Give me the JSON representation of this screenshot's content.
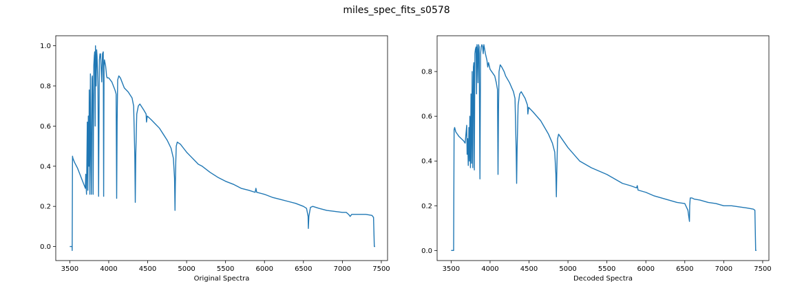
{
  "figure": {
    "title": "miles_spec_fits_s0578",
    "line_color": "#1f77b4"
  },
  "chart_data": [
    {
      "type": "line",
      "title": "",
      "xlabel": "Original Spectra",
      "ylabel": "",
      "xlim": [
        3320,
        7580
      ],
      "ylim": [
        -0.07,
        1.05
      ],
      "xticks": [
        3500,
        4000,
        4500,
        5000,
        5500,
        6000,
        6500,
        7000,
        7500
      ],
      "yticks": [
        0.0,
        0.2,
        0.4,
        0.6,
        0.8,
        1.0
      ],
      "ytick_labels": [
        "0.0",
        "0.2",
        "0.4",
        "0.6",
        "0.8",
        "1.0"
      ],
      "grid": false,
      "series": [
        {
          "x": [
            3500,
            3530,
            3531,
            3535,
            3540,
            3560,
            3600,
            3630,
            3660,
            3680,
            3700,
            3705,
            3710,
            3715,
            3725,
            3732,
            3738,
            3745,
            3750,
            3758,
            3765,
            3770,
            3778,
            3786,
            3790,
            3796,
            3800,
            3808,
            3815,
            3820,
            3826,
            3830,
            3838,
            3845,
            3850,
            3862,
            3870,
            3880,
            3888,
            3895,
            3910,
            3920,
            3930,
            3935,
            3940,
            3945,
            3950,
            3960,
            3968,
            3972,
            3980,
            4000,
            4020,
            4040,
            4060,
            4080,
            4095,
            4102,
            4108,
            4115,
            4130,
            4150,
            4180,
            4200,
            4250,
            4300,
            4320,
            4335,
            4341,
            4347,
            4360,
            4380,
            4400,
            4450,
            4480,
            4485,
            4495,
            4550,
            4600,
            4650,
            4700,
            4750,
            4800,
            4830,
            4845,
            4851,
            4855,
            4861,
            4867,
            4880,
            4920,
            4960,
            5000,
            5050,
            5100,
            5150,
            5200,
            5300,
            5400,
            5500,
            5600,
            5700,
            5800,
            5880,
            5890,
            5900,
            6000,
            6100,
            6200,
            6300,
            6400,
            6500,
            6540,
            6560,
            6563,
            6570,
            6590,
            6620,
            6700,
            6800,
            6900,
            7000,
            7050,
            7080,
            7100,
            7120,
            7200,
            7300,
            7380,
            7400,
            7410,
            7420
          ],
          "values": [
            0.0,
            0.0,
            -0.02,
            0.45,
            0.44,
            0.42,
            0.39,
            0.36,
            0.33,
            0.31,
            0.29,
            0.36,
            0.3,
            0.26,
            0.62,
            0.28,
            0.65,
            0.4,
            0.78,
            0.26,
            0.86,
            0.55,
            0.26,
            0.84,
            0.85,
            0.7,
            0.26,
            0.9,
            0.95,
            0.97,
            0.6,
            1.0,
            0.8,
            0.98,
            0.95,
            0.8,
            0.25,
            0.93,
            0.96,
            0.96,
            0.82,
            0.96,
            0.97,
            0.25,
            0.9,
            0.93,
            0.92,
            0.9,
            0.87,
            0.85,
            0.84,
            0.84,
            0.83,
            0.82,
            0.8,
            0.78,
            0.76,
            0.24,
            0.62,
            0.83,
            0.85,
            0.84,
            0.81,
            0.79,
            0.77,
            0.74,
            0.7,
            0.45,
            0.22,
            0.45,
            0.66,
            0.7,
            0.71,
            0.68,
            0.66,
            0.62,
            0.65,
            0.63,
            0.61,
            0.59,
            0.56,
            0.53,
            0.49,
            0.44,
            0.34,
            0.18,
            0.3,
            0.42,
            0.5,
            0.52,
            0.51,
            0.49,
            0.47,
            0.45,
            0.43,
            0.41,
            0.4,
            0.37,
            0.345,
            0.325,
            0.31,
            0.29,
            0.28,
            0.27,
            0.29,
            0.27,
            0.26,
            0.245,
            0.235,
            0.225,
            0.215,
            0.2,
            0.19,
            0.15,
            0.09,
            0.15,
            0.195,
            0.2,
            0.19,
            0.18,
            0.175,
            0.17,
            0.17,
            0.16,
            0.15,
            0.16,
            0.16,
            0.16,
            0.155,
            0.145,
            0.0,
            0.0
          ]
        }
      ]
    },
    {
      "type": "line",
      "title": "",
      "xlabel": "Decoded Spectra",
      "ylabel": "",
      "xlim": [
        3320,
        7580
      ],
      "ylim": [
        -0.045,
        0.96
      ],
      "xticks": [
        3500,
        4000,
        4500,
        5000,
        5500,
        6000,
        6500,
        7000,
        7500
      ],
      "yticks": [
        0.0,
        0.2,
        0.4,
        0.6,
        0.8
      ],
      "ytick_labels": [
        "0.0",
        "0.2",
        "0.4",
        "0.6",
        "0.8"
      ],
      "grid": false,
      "series": [
        {
          "x": [
            3500,
            3530,
            3532,
            3538,
            3545,
            3560,
            3580,
            3600,
            3630,
            3660,
            3680,
            3690,
            3700,
            3705,
            3712,
            3720,
            3728,
            3735,
            3740,
            3748,
            3755,
            3762,
            3770,
            3778,
            3786,
            3792,
            3798,
            3805,
            3812,
            3820,
            3826,
            3832,
            3838,
            3845,
            3852,
            3860,
            3870,
            3878,
            3886,
            3895,
            3905,
            3912,
            3920,
            3930,
            3940,
            3960,
            3970,
            3980,
            4000,
            4020,
            4040,
            4060,
            4080,
            4095,
            4102,
            4108,
            4115,
            4130,
            4150,
            4180,
            4200,
            4250,
            4300,
            4320,
            4335,
            4341,
            4347,
            4360,
            4380,
            4400,
            4450,
            4480,
            4485,
            4495,
            4550,
            4600,
            4650,
            4700,
            4750,
            4800,
            4830,
            4845,
            4851,
            4855,
            4861,
            4867,
            4880,
            4920,
            4960,
            5000,
            5050,
            5100,
            5150,
            5200,
            5300,
            5400,
            5500,
            5600,
            5700,
            5800,
            5880,
            5890,
            5900,
            6000,
            6100,
            6200,
            6300,
            6400,
            6500,
            6540,
            6560,
            6563,
            6570,
            6590,
            6620,
            6700,
            6800,
            6900,
            7000,
            7100,
            7200,
            7300,
            7380,
            7400,
            7410,
            7420
          ],
          "values": [
            0.0,
            0.0,
            0.0,
            0.54,
            0.55,
            0.53,
            0.52,
            0.51,
            0.5,
            0.49,
            0.48,
            0.52,
            0.56,
            0.43,
            0.5,
            0.38,
            0.55,
            0.4,
            0.6,
            0.37,
            0.7,
            0.39,
            0.8,
            0.37,
            0.82,
            0.84,
            0.36,
            0.88,
            0.9,
            0.91,
            0.7,
            0.92,
            0.9,
            0.75,
            0.92,
            0.91,
            0.32,
            0.88,
            0.91,
            0.92,
            0.91,
            0.88,
            0.92,
            0.9,
            0.88,
            0.85,
            0.82,
            0.84,
            0.81,
            0.8,
            0.79,
            0.78,
            0.75,
            0.72,
            0.34,
            0.62,
            0.8,
            0.83,
            0.82,
            0.8,
            0.78,
            0.75,
            0.71,
            0.68,
            0.45,
            0.3,
            0.45,
            0.65,
            0.7,
            0.71,
            0.68,
            0.65,
            0.61,
            0.64,
            0.62,
            0.6,
            0.58,
            0.55,
            0.52,
            0.48,
            0.44,
            0.34,
            0.24,
            0.32,
            0.42,
            0.5,
            0.52,
            0.5,
            0.48,
            0.46,
            0.44,
            0.42,
            0.4,
            0.39,
            0.37,
            0.355,
            0.34,
            0.32,
            0.3,
            0.29,
            0.28,
            0.29,
            0.27,
            0.26,
            0.245,
            0.235,
            0.225,
            0.215,
            0.21,
            0.18,
            0.13,
            0.2,
            0.235,
            0.235,
            0.23,
            0.225,
            0.215,
            0.21,
            0.2,
            0.2,
            0.195,
            0.19,
            0.185,
            0.18,
            0.0,
            0.0
          ]
        }
      ]
    }
  ]
}
